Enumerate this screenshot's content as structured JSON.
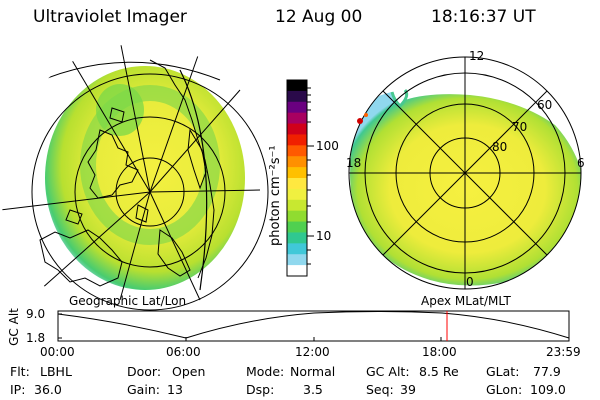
{
  "header": {
    "instrument": "Ultraviolet Imager",
    "date": "12 Aug 00",
    "time": "18:16:37 UT"
  },
  "maps": {
    "left_label": "Geographic Lat/Lon",
    "right_label": "Apex MLat/MLT"
  },
  "polar_grid": {
    "mlt_labels": [
      "12",
      "18",
      "6",
      "0"
    ],
    "mlat_labels": [
      "60",
      "70",
      "80"
    ]
  },
  "colorbar": {
    "unit_label": "photon cm⁻²s⁻¹",
    "ticks": [
      "100",
      "10"
    ],
    "colors": [
      "#000000",
      "#2a0a4a",
      "#6a0080",
      "#a80060",
      "#d0001a",
      "#f02000",
      "#ff5a00",
      "#ff9000",
      "#ffc000",
      "#ffe840",
      "#f0f040",
      "#c8e830",
      "#90dc30",
      "#50d050",
      "#30c890",
      "#40c8d8",
      "#90d8ee",
      "#ffffff"
    ]
  },
  "altitude_plot": {
    "y_axis_label": "GC Alt",
    "y_ticks": [
      "9.0",
      "1.8"
    ],
    "x_ticks": [
      "00:00",
      "06:00",
      "12:00",
      "18:00",
      "23:59"
    ],
    "marker_color": "#ff0000",
    "marker_hour": 18.27
  },
  "status": {
    "filter_label": "Flt:",
    "filter_value": "LBHL",
    "door_label": "Door:",
    "door_value": "Open",
    "mode_label": "Mode:",
    "mode_value": "Normal",
    "gcalt_label": "GC Alt:",
    "gcalt_value": "8.5 Re",
    "glat_label": "GLat:",
    "glat_value": "77.9",
    "ip_label": "IP:",
    "ip_value": "36.0",
    "gain_label": "Gain:",
    "gain_value": "13",
    "dsp_label": "Dsp:",
    "dsp_value": "3.5",
    "seq_label": "Seq:",
    "seq_value": "39",
    "glon_label": "GLon:",
    "glon_value": "109.0"
  }
}
